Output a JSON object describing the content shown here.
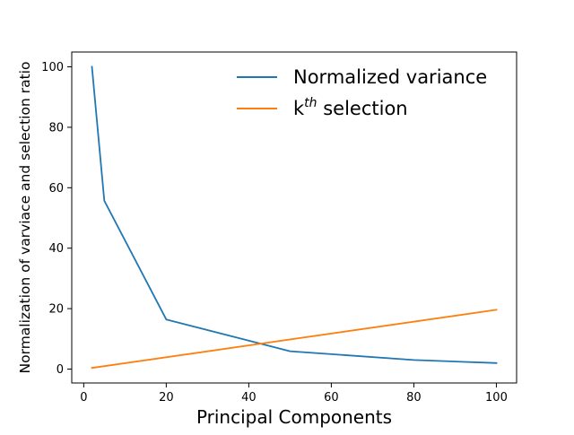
{
  "chart_data": {
    "type": "line",
    "xlabel": "Principal Components",
    "ylabel": "Normalization of varviace and selection ratio",
    "xlim": [
      -2.9,
      104.9
    ],
    "ylim": [
      -4.6,
      104.9
    ],
    "xticks": [
      0,
      20,
      40,
      60,
      80,
      100
    ],
    "yticks": [
      0,
      20,
      40,
      60,
      80,
      100
    ],
    "grid": false,
    "legend_position": "top-right",
    "series": [
      {
        "name": "Normalized variance",
        "color": "#1f77b4",
        "x": [
          2,
          5,
          20,
          50,
          80,
          100
        ],
        "y": [
          100,
          55.7,
          16.4,
          5.9,
          3.0,
          2.0
        ]
      },
      {
        "name": "k",
        "name_superscript": "th",
        "name_suffix": " selection",
        "color": "#ff7f0e",
        "x": [
          2,
          100
        ],
        "y": [
          0.4,
          19.6
        ]
      }
    ]
  }
}
